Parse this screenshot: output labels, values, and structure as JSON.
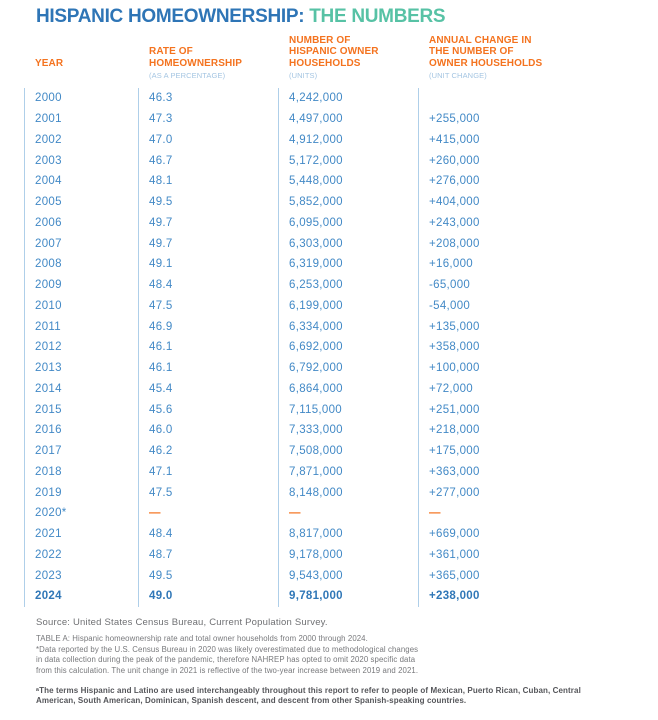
{
  "title": {
    "blue": "HISPANIC HOMEOWNERSHIP:",
    "teal": "THE NUMBERS"
  },
  "chart_data": {
    "type": "table",
    "title": "HISPANIC HOMEOWNERSHIP: THE NUMBERS",
    "columns": [
      {
        "id": "year",
        "lines": [
          "YEAR"
        ],
        "sub": ""
      },
      {
        "id": "rate",
        "lines": [
          "RATE OF",
          "HOMEOWNERSHIP"
        ],
        "sub": "(AS A PERCENTAGE)"
      },
      {
        "id": "households",
        "lines": [
          "NUMBER OF",
          "HISPANIC OWNER",
          "HOUSEHOLDS"
        ],
        "sub": "(UNITS)"
      },
      {
        "id": "change",
        "lines": [
          "ANNUAL CHANGE IN",
          "THE NUMBER OF",
          "OWNER HOUSEHOLDS"
        ],
        "sub": "(UNIT CHANGE)"
      }
    ],
    "rows": [
      {
        "cells": [
          "2000",
          "46.3",
          "4,242,000",
          ""
        ]
      },
      {
        "cells": [
          "2001",
          "47.3",
          "4,497,000",
          "+255,000"
        ]
      },
      {
        "cells": [
          "2002",
          "47.0",
          "4,912,000",
          "+415,000"
        ]
      },
      {
        "cells": [
          "2003",
          "46.7",
          "5,172,000",
          "+260,000"
        ]
      },
      {
        "cells": [
          "2004",
          "48.1",
          "5,448,000",
          "+276,000"
        ]
      },
      {
        "cells": [
          "2005",
          "49.5",
          "5,852,000",
          "+404,000"
        ]
      },
      {
        "cells": [
          "2006",
          "49.7",
          "6,095,000",
          "+243,000"
        ]
      },
      {
        "cells": [
          "2007",
          "49.7",
          "6,303,000",
          "+208,000"
        ]
      },
      {
        "cells": [
          "2008",
          "49.1",
          "6,319,000",
          "+16,000"
        ]
      },
      {
        "cells": [
          "2009",
          "48.4",
          "6,253,000",
          "-65,000"
        ]
      },
      {
        "cells": [
          "2010",
          "47.5",
          "6,199,000",
          "-54,000"
        ]
      },
      {
        "cells": [
          "2011",
          "46.9",
          "6,334,000",
          "+135,000"
        ]
      },
      {
        "cells": [
          "2012",
          "46.1",
          "6,692,000",
          "+358,000"
        ]
      },
      {
        "cells": [
          "2013",
          "46.1",
          "6,792,000",
          "+100,000"
        ]
      },
      {
        "cells": [
          "2014",
          "45.4",
          "6,864,000",
          "+72,000"
        ]
      },
      {
        "cells": [
          "2015",
          "45.6",
          "7,115,000",
          "+251,000"
        ]
      },
      {
        "cells": [
          "2016",
          "46.0",
          "7,333,000",
          "+218,000"
        ]
      },
      {
        "cells": [
          "2017",
          "46.2",
          "7,508,000",
          "+175,000"
        ]
      },
      {
        "cells": [
          "2018",
          "47.1",
          "7,871,000",
          "+363,000"
        ]
      },
      {
        "cells": [
          "2019",
          "47.5",
          "8,148,000",
          "+277,000"
        ]
      },
      {
        "cells": [
          "2020*",
          "—",
          "—",
          "—"
        ],
        "omitted": true
      },
      {
        "cells": [
          "2021",
          "48.4",
          "8,817,000",
          "+669,000"
        ]
      },
      {
        "cells": [
          "2022",
          "48.7",
          "9,178,000",
          "+361,000"
        ]
      },
      {
        "cells": [
          "2023",
          "49.5",
          "9,543,000",
          "+365,000"
        ]
      },
      {
        "cells": [
          "2024",
          "49.0",
          "9,781,000",
          "+238,000"
        ],
        "bold": true
      }
    ]
  },
  "footer": {
    "source": "Source: United States Census Bureau, Current Population Survey.",
    "table_note": "TABLE A: Hispanic homeownership rate and total owner households from 2000 through 2024.",
    "data_note": "*Data reported by the U.S. Census Bureau in 2020 was likely overestimated due to methodological changes in data collection during the peak of the pandemic, therefore NAHREP has opted to omit 2020 specific data from this calculation. The unit change in 2021 is reflective of the two-year increase between 2019 and 2021.",
    "terms_note": "ᵃThe terms Hispanic and Latino are used interchangeably throughout this report to refer to people of Mexican, Puerto Rican, Cuban, Central American, South American, Dominican, Spanish descent, and descent from other Spanish-speaking countries."
  },
  "colors": {
    "title_blue": "#2E75B6",
    "title_teal": "#57C2A5",
    "header_orange": "#F4731F",
    "sublabel_blue": "#A4C5E2",
    "data_blue": "#4289C6",
    "bold_row_blue": "#3077B7",
    "divider_blue": "#AFCFE9",
    "dash_orange": "#F4731F",
    "source_gray": "#6F7073",
    "note_gray": "#77787B",
    "terms_gray": "#55565A"
  }
}
